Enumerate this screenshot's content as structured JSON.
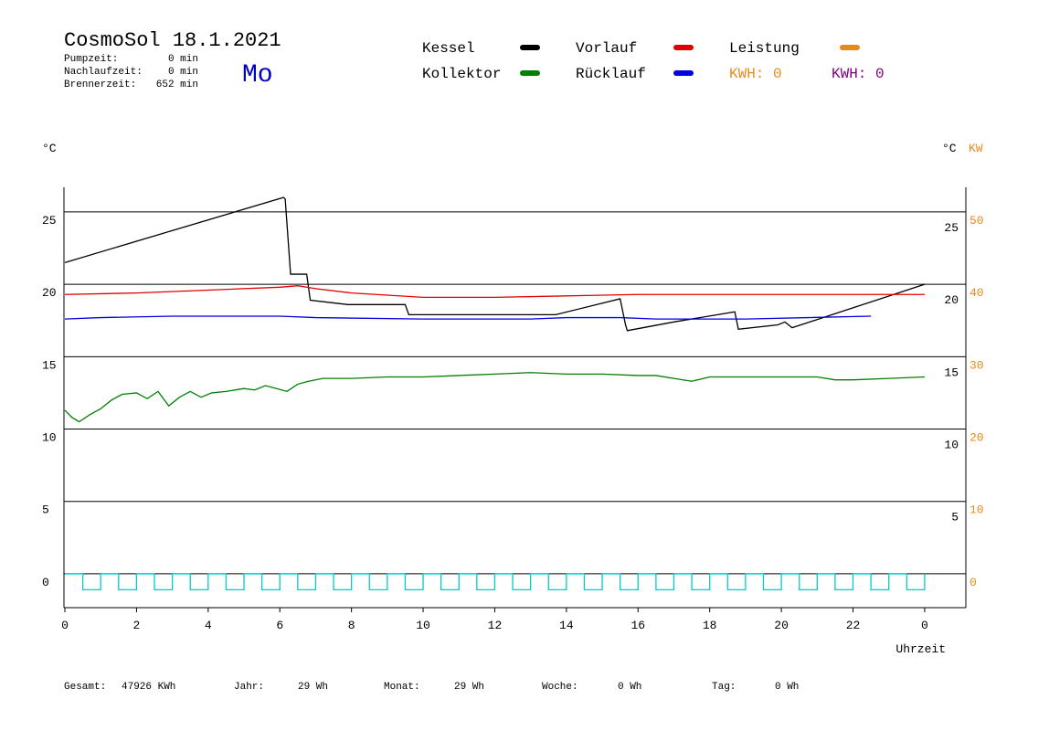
{
  "header": {
    "title": "CosmoSol 18.1.2021",
    "day": "Mo",
    "info": [
      {
        "label": "Pumpzeit:",
        "value": "0 min"
      },
      {
        "label": "Nachlaufzeit:",
        "value": "0 min"
      },
      {
        "label": "Brennerzeit:",
        "value": "652 min"
      }
    ]
  },
  "chart_data": {
    "type": "line",
    "y_unit": "°C",
    "y2_unit_c": "°C",
    "y2_unit": "KW",
    "xlabel": "Uhrzeit",
    "xlim": [
      0,
      25.15
    ],
    "xticks": [
      0,
      2,
      4,
      6,
      8,
      10,
      12,
      14,
      16,
      18,
      20,
      22,
      {
        "value": 24,
        "label": "0"
      }
    ],
    "ylim": [
      -2.34,
      26.7
    ],
    "yticks": [
      0,
      5,
      10,
      15,
      20,
      25
    ],
    "yticks_right": [
      5,
      10,
      15,
      20,
      25
    ],
    "y2lim": [
      -4.68,
      53.4
    ],
    "y2ticks": [
      0,
      10,
      20,
      30,
      40,
      50
    ],
    "y2color": "#e88a1a",
    "grid": true,
    "series": [
      {
        "name": "Kessel",
        "color": "#000000",
        "x": [
          0,
          6.1,
          6.15,
          6.3,
          6.75,
          6.85,
          7.9,
          9.5,
          9.6,
          13.7,
          15.5,
          15.65,
          15.7,
          17.0,
          18.7,
          18.8,
          19.9,
          20.1,
          20.3,
          24
        ],
        "values": [
          21.5,
          26.0,
          25.9,
          20.7,
          20.7,
          18.9,
          18.6,
          18.6,
          17.9,
          17.9,
          19.0,
          17.2,
          16.8,
          17.4,
          18.1,
          16.9,
          17.2,
          17.4,
          17.0,
          20.0
        ]
      },
      {
        "name": "Kollektor",
        "color": "#008000",
        "x": [
          0,
          0.2,
          0.4,
          0.7,
          1,
          1.3,
          1.6,
          2,
          2.3,
          2.6,
          2.9,
          3.2,
          3.5,
          3.8,
          4.1,
          4.5,
          5,
          5.3,
          5.6,
          5.9,
          6.2,
          6.5,
          6.8,
          7.2,
          7.6,
          8,
          9,
          10,
          11,
          12,
          13,
          14,
          15,
          16,
          16.5,
          17,
          17.5,
          18,
          19,
          20,
          21,
          21.5,
          22,
          23,
          24
        ],
        "values": [
          11.3,
          10.8,
          10.5,
          11,
          11.4,
          12,
          12.4,
          12.5,
          12.1,
          12.6,
          11.6,
          12.2,
          12.6,
          12.2,
          12.5,
          12.6,
          12.8,
          12.7,
          13.0,
          12.8,
          12.6,
          13.1,
          13.3,
          13.5,
          13.5,
          13.5,
          13.6,
          13.6,
          13.7,
          13.8,
          13.9,
          13.8,
          13.8,
          13.7,
          13.7,
          13.5,
          13.3,
          13.6,
          13.6,
          13.6,
          13.6,
          13.4,
          13.4,
          13.5,
          13.6
        ]
      },
      {
        "name": "Vorlauf",
        "color": "#e00000",
        "x": [
          0,
          2,
          4,
          6,
          6.5,
          7,
          8,
          10,
          12,
          14,
          16,
          20,
          24
        ],
        "values": [
          19.3,
          19.4,
          19.6,
          19.8,
          19.9,
          19.7,
          19.4,
          19.1,
          19.1,
          19.2,
          19.3,
          19.3,
          19.3
        ]
      },
      {
        "name": "Rücklauf",
        "color": "#0000e0",
        "x": [
          0,
          1,
          3,
          6,
          7,
          10,
          13,
          14,
          15.5,
          16.5,
          19,
          22.5
        ],
        "values": [
          17.6,
          17.7,
          17.8,
          17.8,
          17.7,
          17.6,
          17.6,
          17.7,
          17.7,
          17.6,
          17.6,
          17.8
        ]
      },
      {
        "name": "Leistung",
        "color": "#e88a1a",
        "axis": "y2",
        "x": [],
        "values": []
      },
      {
        "color": "#00cccc",
        "step": true,
        "x": [
          0,
          0.5,
          1,
          1.5,
          2,
          2.5,
          3,
          3.5,
          4,
          4.5,
          5,
          5.5,
          6,
          6.5,
          7,
          7.5,
          8,
          8.5,
          9,
          9.5,
          10,
          10.5,
          11,
          11.5,
          12,
          12.5,
          13,
          13.5,
          14,
          14.5,
          15,
          15.5,
          16,
          16.5,
          17,
          17.5,
          18,
          18.5,
          19,
          19.5,
          20,
          20.5,
          21,
          21.5,
          22,
          22.5,
          23,
          23.5,
          24
        ],
        "values": [
          0,
          -1.1,
          0,
          -1.1,
          0,
          -1.1,
          0,
          -1.1,
          0,
          -1.1,
          0,
          -1.1,
          0,
          -1.1,
          0,
          -1.1,
          0,
          -1.1,
          0,
          -1.1,
          0,
          -1.1,
          0,
          -1.1,
          0,
          -1.1,
          0,
          -1.1,
          0,
          -1.1,
          0,
          -1.1,
          0,
          -1.1,
          0,
          -1.1,
          0,
          -1.1,
          0,
          -1.1,
          0,
          -1.1,
          0,
          -1.1,
          0,
          -1.1,
          0,
          -1.1,
          0
        ]
      }
    ],
    "kwh_labels": [
      {
        "text": "KWH: 0",
        "color": "#e88a1a"
      },
      {
        "text": "KWH: 0",
        "color": "#800080"
      }
    ]
  },
  "footer": [
    {
      "label": "Gesamt:",
      "value": "47926 KWh"
    },
    {
      "label": "Jahr:",
      "value": "29 Wh"
    },
    {
      "label": "Monat:",
      "value": "29 Wh"
    },
    {
      "label": "Woche:",
      "value": "0 Wh"
    },
    {
      "label": "Tag:",
      "value": "0 Wh"
    }
  ]
}
